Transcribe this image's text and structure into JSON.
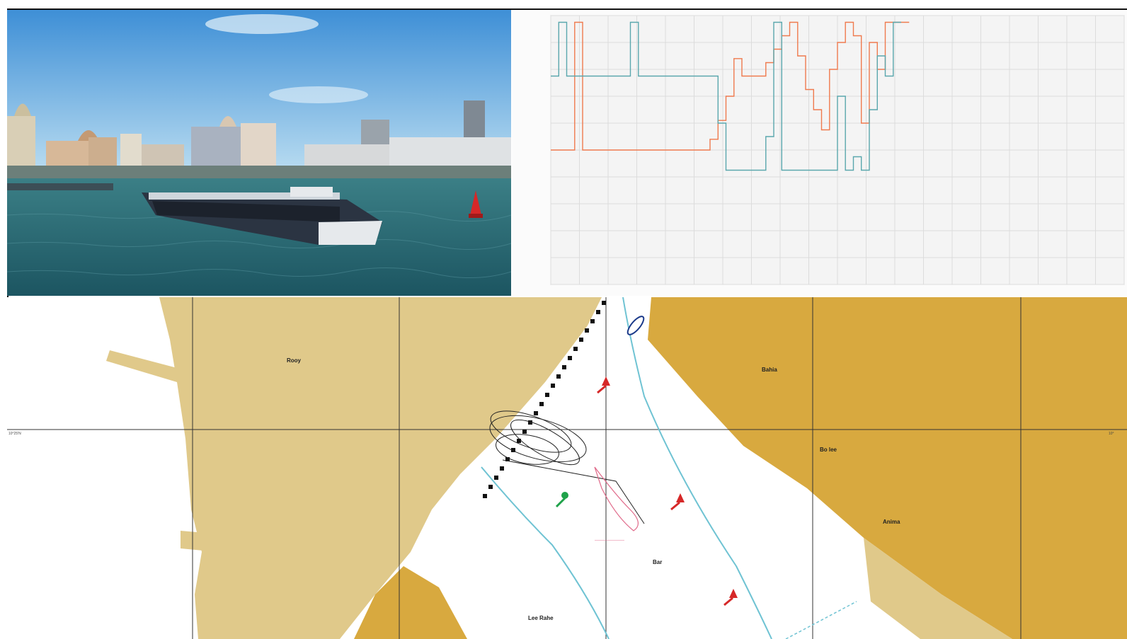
{
  "panels": {
    "scene_name": "3D bridge view",
    "chart_name": "time-series plot",
    "map_name": "electronic nautical chart"
  },
  "colors": {
    "water": "#2f6f78",
    "sky": "#7dbde6",
    "land_light": "#e0c98a",
    "land_dark": "#d8a93f",
    "series_orange": "#ef7a4e",
    "series_teal": "#5aa7ad",
    "track_pink": "#e06a8a",
    "buoy_red": "#d62828",
    "buoy_green": "#1fa24a"
  },
  "chart_data": {
    "type": "line",
    "ylim": [
      -100,
      100
    ],
    "grid": true,
    "series": [
      {
        "color": "#ef7a4e",
        "points": [
          [
            0,
            0
          ],
          [
            3,
            0
          ],
          [
            3,
            95
          ],
          [
            4,
            95
          ],
          [
            4,
            0
          ],
          [
            20,
            0
          ],
          [
            20,
            8
          ],
          [
            21,
            8
          ],
          [
            21,
            22
          ],
          [
            22,
            22
          ],
          [
            22,
            40
          ],
          [
            23,
            40
          ],
          [
            23,
            68
          ],
          [
            24,
            68
          ],
          [
            24,
            55
          ],
          [
            27,
            55
          ],
          [
            27,
            65
          ],
          [
            28,
            65
          ],
          [
            28,
            75
          ],
          [
            29,
            75
          ],
          [
            29,
            85
          ],
          [
            30,
            85
          ],
          [
            30,
            95
          ],
          [
            31,
            95
          ],
          [
            31,
            70
          ],
          [
            32,
            70
          ],
          [
            32,
            45
          ],
          [
            33,
            45
          ],
          [
            33,
            30
          ],
          [
            34,
            30
          ],
          [
            34,
            15
          ],
          [
            35,
            15
          ],
          [
            35,
            60
          ],
          [
            36,
            60
          ],
          [
            36,
            80
          ],
          [
            37,
            80
          ],
          [
            37,
            95
          ],
          [
            38,
            95
          ],
          [
            38,
            85
          ],
          [
            39,
            85
          ],
          [
            39,
            20
          ],
          [
            40,
            20
          ],
          [
            40,
            80
          ],
          [
            41,
            80
          ],
          [
            41,
            60
          ],
          [
            42,
            60
          ],
          [
            42,
            95
          ],
          [
            45,
            95
          ]
        ]
      },
      {
        "color": "#5aa7ad",
        "points": [
          [
            0,
            55
          ],
          [
            1,
            55
          ],
          [
            1,
            95
          ],
          [
            2,
            95
          ],
          [
            2,
            55
          ],
          [
            10,
            55
          ],
          [
            10,
            95
          ],
          [
            11,
            95
          ],
          [
            11,
            55
          ],
          [
            21,
            55
          ],
          [
            21,
            20
          ],
          [
            22,
            20
          ],
          [
            22,
            -15
          ],
          [
            27,
            -15
          ],
          [
            27,
            10
          ],
          [
            28,
            10
          ],
          [
            28,
            95
          ],
          [
            29,
            95
          ],
          [
            29,
            -15
          ],
          [
            36,
            -15
          ],
          [
            36,
            40
          ],
          [
            37,
            40
          ],
          [
            37,
            -15
          ],
          [
            38,
            -15
          ],
          [
            38,
            -5
          ],
          [
            39,
            -5
          ],
          [
            39,
            -15
          ],
          [
            40,
            -15
          ],
          [
            40,
            30
          ],
          [
            41,
            30
          ],
          [
            41,
            70
          ],
          [
            42,
            70
          ],
          [
            42,
            55
          ],
          [
            43,
            55
          ],
          [
            43,
            95
          ],
          [
            44,
            95
          ]
        ]
      }
    ],
    "xlim": [
      0,
      72
    ]
  },
  "map": {
    "labels": [
      {
        "text": "Rooy"
      },
      {
        "text": "Bahia"
      },
      {
        "text": "Bo lee"
      },
      {
        "text": "Anima"
      },
      {
        "text": "Bar"
      },
      {
        "text": "Lee Rahe"
      }
    ],
    "lat_label_left": "10°25'N",
    "lat_label_right": "10°"
  }
}
